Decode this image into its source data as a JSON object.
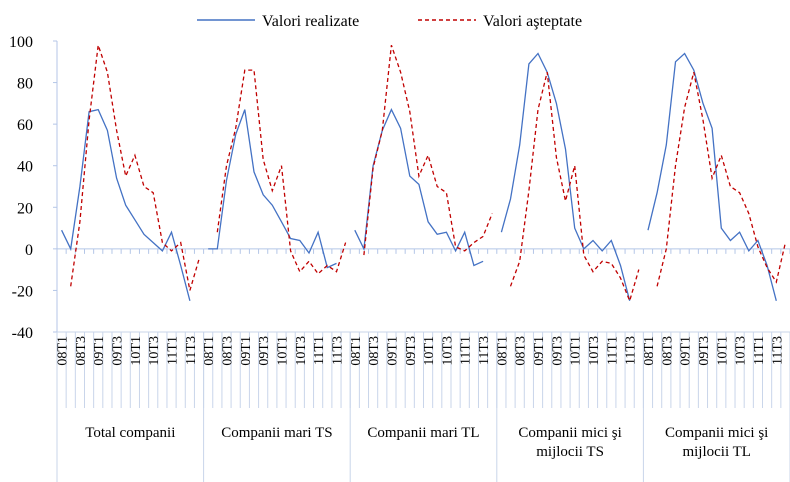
{
  "chart_data": {
    "type": "line",
    "categories": [
      "08T1",
      null,
      "08T3",
      null,
      "09T1",
      null,
      "09T3",
      null,
      "10T1",
      null,
      "10T3",
      null,
      "11T1",
      null,
      "11T3",
      null,
      "08T1",
      null,
      "08T3",
      null,
      "09T1",
      null,
      "09T3",
      null,
      "10T1",
      null,
      "10T3",
      null,
      "11T1",
      null,
      "11T3",
      null,
      "08T1",
      null,
      "08T3",
      null,
      "09T1",
      null,
      "09T3",
      null,
      "10T1",
      null,
      "10T3",
      null,
      "11T1",
      null,
      "11T3",
      null,
      "08T1",
      null,
      "08T3",
      null,
      "09T1",
      null,
      "09T3",
      null,
      "10T1",
      null,
      "10T3",
      null,
      "11T1",
      null,
      "11T3",
      null,
      "08T1",
      null,
      "08T3",
      null,
      "09T1",
      null,
      "09T3",
      null,
      "10T1",
      null,
      "10T3",
      null,
      "11T1",
      null,
      "11T3",
      null
    ],
    "groups": [
      "Total companii",
      "Companii mari TS",
      "Companii mari TL",
      "Companii mici şi mijlocii TS",
      "Companii mici şi mijlocii TL"
    ],
    "series": [
      {
        "name": "Valori realizate",
        "color": "#4472c4",
        "dashed": false,
        "values": [
          9,
          0,
          30,
          66,
          67,
          57,
          34,
          21,
          14,
          7,
          3,
          -1,
          8,
          -8,
          -25,
          null,
          0,
          0,
          33,
          55,
          67,
          37,
          26,
          21,
          13,
          5,
          4,
          -2,
          8,
          -9,
          -7,
          null,
          9,
          0,
          40,
          57,
          67,
          58,
          35,
          31,
          13,
          7,
          8,
          -1,
          8,
          -8,
          -6,
          null,
          8,
          24,
          50,
          89,
          94,
          85,
          70,
          48,
          10,
          0,
          4,
          -1,
          4,
          -8,
          -25,
          null,
          9,
          27,
          50,
          90,
          94,
          86,
          70,
          58,
          10,
          4,
          8,
          -1,
          4,
          -8,
          -25,
          null
        ]
      },
      {
        "name": "Valori aşteptate",
        "color": "#c00000",
        "dashed": true,
        "values": [
          null,
          -18,
          13,
          62,
          98,
          85,
          57,
          35,
          45,
          30,
          27,
          3,
          -1,
          3,
          -20,
          -5,
          null,
          8,
          40,
          58,
          86,
          86,
          43,
          28,
          40,
          -1,
          -11,
          -6,
          -12,
          -8,
          -11,
          3,
          null,
          -3,
          39,
          57,
          98,
          85,
          66,
          35,
          45,
          30,
          27,
          1,
          -1,
          3,
          6,
          17,
          null,
          -18,
          -6,
          28,
          67,
          85,
          44,
          23,
          40,
          -3,
          -11,
          -6,
          -7,
          -14,
          -25,
          -10,
          null,
          -18,
          0,
          40,
          68,
          85,
          62,
          34,
          45,
          30,
          27,
          17,
          1,
          -9,
          -16,
          3
        ]
      }
    ],
    "ylim": [
      -40,
      100
    ],
    "yticks": [
      -40,
      -20,
      0,
      20,
      40,
      60,
      80,
      100
    ],
    "grid": false
  }
}
